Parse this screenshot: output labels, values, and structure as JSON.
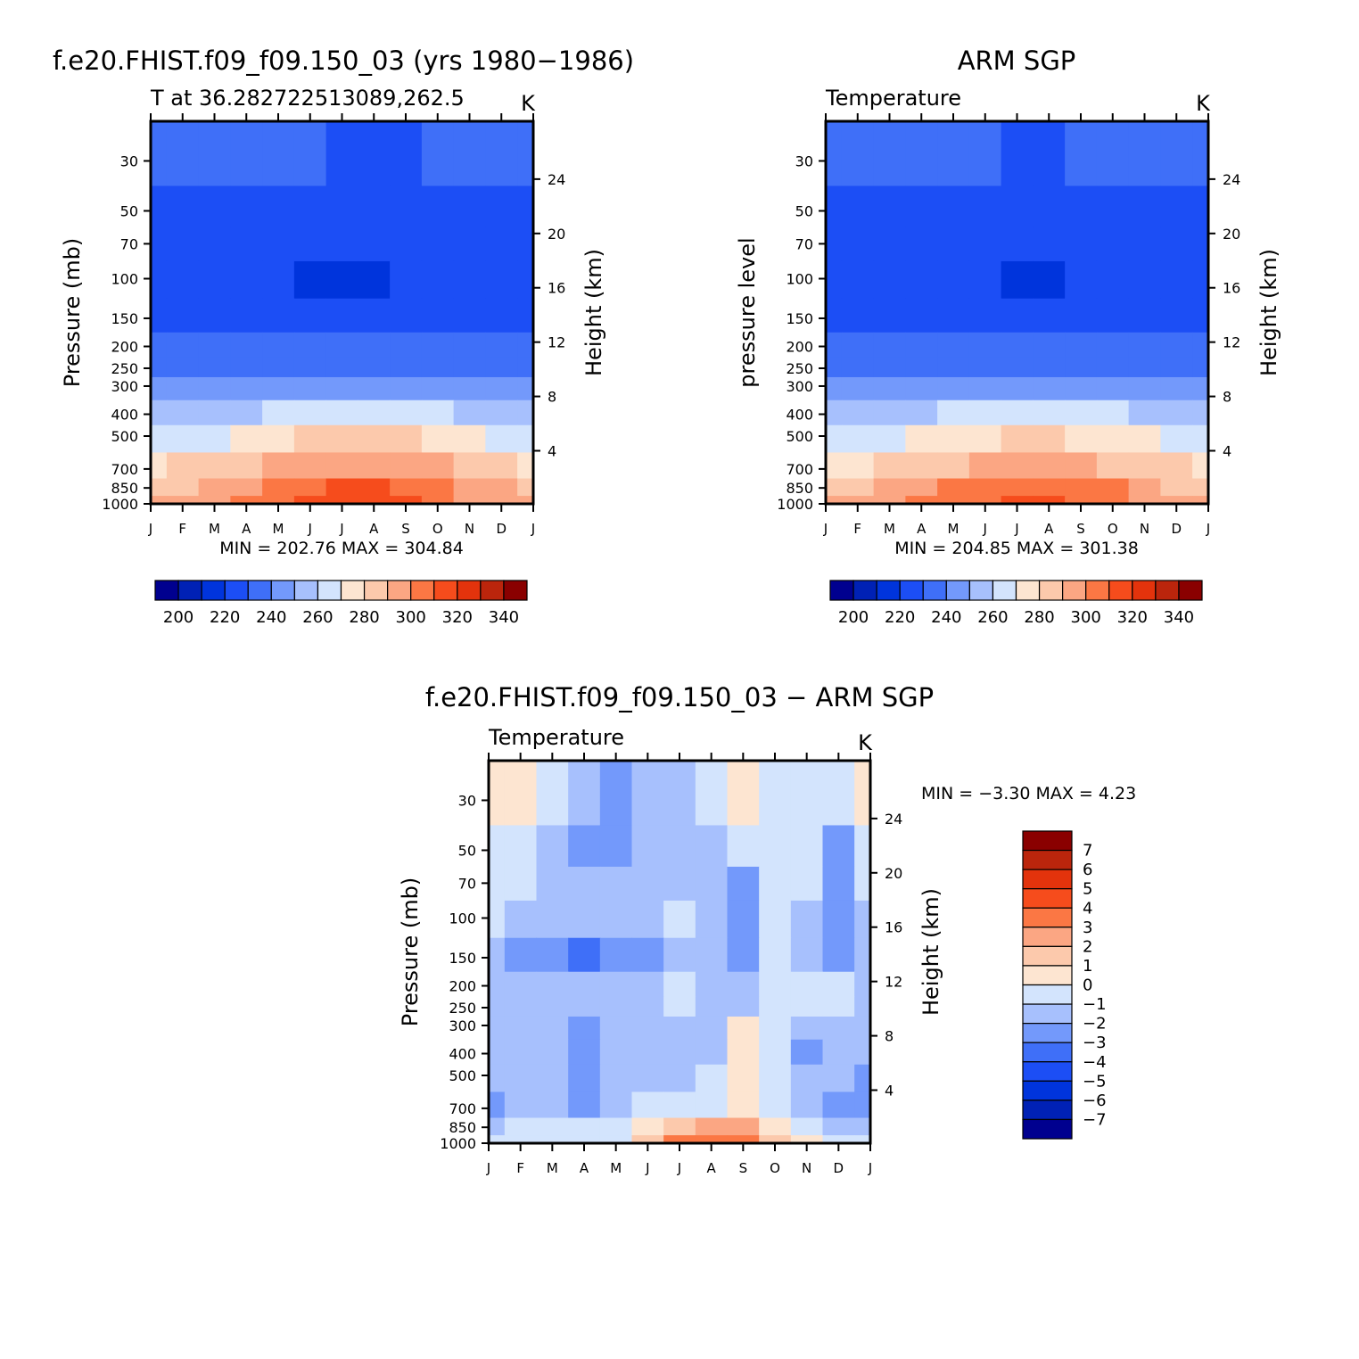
{
  "months": [
    "J",
    "F",
    "M",
    "A",
    "M",
    "J",
    "J",
    "A",
    "S",
    "O",
    "N",
    "D",
    "J"
  ],
  "pressure_ticks": [
    "30",
    "50",
    "70",
    "100",
    "150",
    "200",
    "250",
    "300",
    "400",
    "500",
    "700",
    "850",
    "1000"
  ],
  "height_ticks": [
    "24",
    "20",
    "16",
    "12",
    "8",
    "4"
  ],
  "colors": {
    "temp_palette": [
      "#00008f",
      "#0021b5",
      "#0034dc",
      "#1c4ef5",
      "#3f6ff8",
      "#7399fb",
      "#a7c0fd",
      "#d3e4fd",
      "#fde5d1",
      "#fcc9ac",
      "#fba683",
      "#fb7744",
      "#f64c1c",
      "#e3330c",
      "#bb250c",
      "#8a0000"
    ],
    "diff_palette": [
      "#00008f",
      "#0021b5",
      "#0034dc",
      "#1c4ef5",
      "#3f6ff8",
      "#7399fb",
      "#a7c0fd",
      "#d3e4fd",
      "#fde5d1",
      "#fcc9ac",
      "#fba683",
      "#fb7744",
      "#f64c1c",
      "#e3330c",
      "#bb250c",
      "#8a0000"
    ]
  },
  "chart_data": [
    {
      "type": "heatmap",
      "title": "f.e20.FHIST.f09_f09.150_03 (yrs 1980−1986)",
      "subtitle_left": "T at 36.282722513089,262.5",
      "subtitle_right": "K",
      "xlabel": "",
      "ylabel": "Pressure (mb)",
      "ylabel_right": "Height (km)",
      "stats": "MIN = 202.76 MAX = 304.84",
      "levels": [
        "200",
        "220",
        "240",
        "260",
        "280",
        "300",
        "320",
        "340"
      ],
      "x": [
        "J",
        "F",
        "M",
        "A",
        "M",
        "J",
        "J",
        "A",
        "S",
        "O",
        "N",
        "D",
        "J"
      ],
      "y": [
        30,
        50,
        70,
        100,
        150,
        200,
        250,
        300,
        400,
        500,
        700,
        850,
        1000
      ],
      "z": [
        [
          224,
          223,
          222,
          221,
          220,
          220,
          219,
          218,
          219,
          220,
          221,
          222,
          224
        ],
        [
          216,
          216,
          215,
          215,
          214,
          213,
          213,
          213,
          213,
          214,
          215,
          216,
          216
        ],
        [
          212,
          212,
          212,
          212,
          211,
          210,
          210,
          210,
          210,
          211,
          211,
          212,
          212
        ],
        [
          215,
          215,
          214,
          213,
          210,
          209,
          209,
          209,
          210,
          211,
          212,
          214,
          215
        ],
        [
          218,
          218,
          217,
          216,
          214,
          212,
          212,
          212,
          213,
          215,
          216,
          217,
          218
        ],
        [
          222,
          222,
          221,
          221,
          220,
          220,
          220,
          220,
          220,
          221,
          221,
          222,
          222
        ],
        [
          225,
          225,
          225,
          226,
          227,
          228,
          229,
          229,
          229,
          228,
          226,
          225,
          225
        ],
        [
          231,
          231,
          232,
          233,
          235,
          237,
          238,
          238,
          237,
          236,
          234,
          232,
          231
        ],
        [
          244,
          244,
          246,
          248,
          252,
          256,
          258,
          258,
          256,
          252,
          248,
          245,
          244
        ],
        [
          255,
          256,
          258,
          261,
          265,
          270,
          272,
          272,
          270,
          266,
          261,
          257,
          255
        ],
        [
          269,
          270,
          272,
          276,
          280,
          285,
          288,
          288,
          285,
          280,
          275,
          271,
          269
        ],
        [
          277,
          279,
          282,
          286,
          291,
          297,
          300,
          300,
          297,
          291,
          285,
          280,
          277
        ],
        [
          281,
          283,
          287,
          291,
          297,
          302,
          305,
          304,
          301,
          294,
          288,
          283,
          281
        ]
      ]
    },
    {
      "type": "heatmap",
      "title": "ARM SGP",
      "subtitle_left": "Temperature",
      "subtitle_right": "K",
      "xlabel": "",
      "ylabel": "pressure level",
      "ylabel_right": "Height (km)",
      "stats": "MIN = 204.85 MAX = 301.38",
      "levels": [
        "200",
        "220",
        "240",
        "260",
        "280",
        "300",
        "320",
        "340"
      ],
      "x": [
        "J",
        "F",
        "M",
        "A",
        "M",
        "J",
        "J",
        "A",
        "S",
        "O",
        "N",
        "D",
        "J"
      ],
      "y": [
        30,
        50,
        70,
        100,
        150,
        200,
        250,
        300,
        400,
        500,
        700,
        850,
        1000
      ],
      "z": [
        [
          224,
          224,
          223,
          222,
          221,
          220,
          219,
          219,
          220,
          221,
          222,
          223,
          224
        ],
        [
          218,
          218,
          217,
          216,
          216,
          215,
          215,
          215,
          215,
          216,
          216,
          217,
          218
        ],
        [
          212,
          213,
          213,
          213,
          212,
          211,
          211,
          211,
          211,
          212,
          212,
          213,
          213
        ],
        [
          214,
          214,
          214,
          214,
          212,
          210,
          209,
          209,
          210,
          211,
          212,
          214,
          215
        ],
        [
          217,
          217,
          217,
          217,
          215,
          213,
          212,
          212,
          213,
          214,
          216,
          217,
          217
        ],
        [
          221,
          221,
          221,
          221,
          221,
          220,
          220,
          220,
          220,
          221,
          221,
          221,
          221
        ],
        [
          225,
          225,
          225,
          226,
          227,
          228,
          229,
          229,
          229,
          228,
          226,
          225,
          225
        ],
        [
          231,
          231,
          232,
          233,
          235,
          237,
          238,
          238,
          237,
          236,
          234,
          232,
          231
        ],
        [
          243,
          244,
          245,
          248,
          251,
          255,
          257,
          257,
          255,
          251,
          247,
          244,
          243
        ],
        [
          254,
          255,
          257,
          260,
          264,
          268,
          271,
          271,
          268,
          264,
          260,
          256,
          254
        ],
        [
          268,
          269,
          271,
          275,
          279,
          284,
          287,
          287,
          284,
          279,
          274,
          270,
          268
        ],
        [
          276,
          278,
          281,
          285,
          290,
          295,
          298,
          298,
          295,
          290,
          284,
          279,
          276
        ],
        [
          280,
          282,
          286,
          290,
          295,
          299,
          301,
          301,
          298,
          292,
          287,
          282,
          280
        ]
      ]
    },
    {
      "type": "heatmap",
      "title": "f.e20.FHIST.f09_f09.150_03 − ARM SGP",
      "subtitle_left": "Temperature",
      "subtitle_right": "K",
      "xlabel": "",
      "ylabel": "Pressure (mb)",
      "ylabel_right": "Height (km)",
      "stats": "MIN =   −3.30 MAX =    4.23",
      "levels": [
        "7",
        "6",
        "5",
        "4",
        "3",
        "2",
        "1",
        "0",
        "−1",
        "−2",
        "−3",
        "−4",
        "−5",
        "−6",
        "−7"
      ],
      "x": [
        "J",
        "F",
        "M",
        "A",
        "M",
        "J",
        "J",
        "A",
        "S",
        "O",
        "N",
        "D",
        "J"
      ],
      "y": [
        30,
        50,
        70,
        100,
        150,
        200,
        250,
        300,
        400,
        500,
        700,
        850,
        1000
      ],
      "z": [
        [
          0.8,
          0.5,
          -0.5,
          -2.0,
          -2.2,
          -2.0,
          -1.5,
          -1.0,
          0.3,
          -0.5,
          -0.5,
          -0.8,
          0.5
        ],
        [
          -0.5,
          -1.0,
          -2.0,
          -2.5,
          -2.5,
          -2.0,
          -1.5,
          -1.5,
          -1.0,
          -0.5,
          -1.0,
          -2.5,
          -1.0
        ],
        [
          -0.8,
          -1.0,
          -2.0,
          -1.2,
          -2.0,
          -2.0,
          -1.8,
          -1.5,
          -2.5,
          -0.8,
          -1.0,
          -2.5,
          -1.0
        ],
        [
          -1.0,
          -1.2,
          -2.0,
          -2.0,
          -2.0,
          -2.0,
          -1.0,
          -1.5,
          -2.5,
          -0.8,
          -1.2,
          -2.5,
          -1.2
        ],
        [
          -2.0,
          -2.2,
          -2.8,
          -3.2,
          -2.5,
          -2.2,
          -2.0,
          -2.0,
          -2.2,
          -1.0,
          -1.5,
          -2.2,
          -2.0
        ],
        [
          -1.5,
          -1.5,
          -1.5,
          -1.5,
          -1.5,
          -1.5,
          -1.0,
          -1.5,
          -1.5,
          -0.5,
          -1.0,
          -1.0,
          -1.5
        ],
        [
          -1.5,
          -1.5,
          -1.2,
          -1.5,
          -1.5,
          -1.5,
          -0.8,
          -1.2,
          -1.5,
          -0.8,
          -1.0,
          -0.8,
          -1.5
        ],
        [
          -1.5,
          -1.5,
          -1.5,
          -2.2,
          -1.5,
          -1.5,
          -1.5,
          -1.2,
          0.5,
          -1.0,
          -1.5,
          -1.5,
          -1.5
        ],
        [
          -1.5,
          -1.5,
          -1.5,
          -2.5,
          -2.0,
          -1.5,
          -1.5,
          -1.2,
          0.3,
          -1.0,
          -2.2,
          -1.5,
          -1.8
        ],
        [
          -2.0,
          -1.5,
          -1.5,
          -2.5,
          -2.0,
          -1.5,
          -1.2,
          -1.0,
          0.3,
          -1.0,
          -1.5,
          -1.5,
          -2.2
        ],
        [
          -2.2,
          -1.5,
          -1.5,
          -2.5,
          -1.5,
          -0.8,
          -0.5,
          -0.5,
          0.3,
          -1.0,
          -1.5,
          -2.2,
          -2.5
        ],
        [
          -2.0,
          -1.0,
          -0.8,
          -1.0,
          -0.5,
          0.8,
          1.8,
          2.0,
          2.0,
          0.5,
          -0.5,
          -1.5,
          -2.0
        ],
        [
          -1.0,
          -0.8,
          -0.5,
          -0.3,
          -0.3,
          1.5,
          3.0,
          3.5,
          3.5,
          1.0,
          0.2,
          -0.5,
          -0.8
        ]
      ]
    }
  ]
}
